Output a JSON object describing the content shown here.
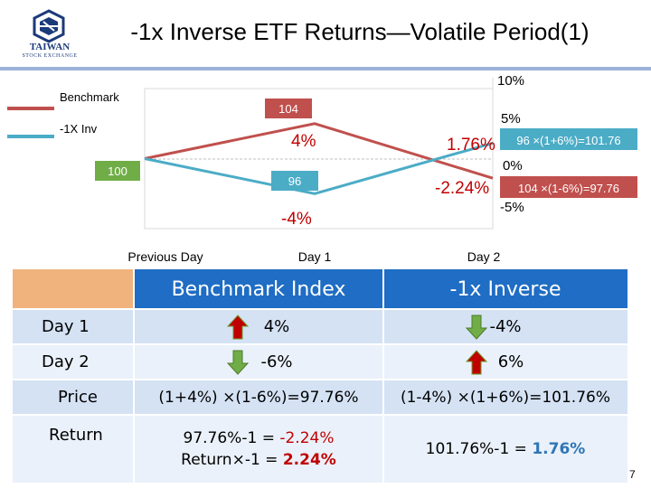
{
  "header": {
    "title": "-1x Inverse ETF Returns—Volatile Period(1)",
    "logo_text": "TAIWAN",
    "logo_sub": "STOCK EXCHANGE",
    "accent": "#1b3a7a"
  },
  "chart_data": {
    "type": "line",
    "title": "",
    "x": [
      "Previous Day",
      "Day 1",
      "Day 2"
    ],
    "y_axis_right": {
      "ticks": [
        "10%",
        "5%",
        "0%",
        "-5%"
      ],
      "ylim": [
        -7,
        11
      ]
    },
    "legend": [
      "Benchmark",
      "-1X Inv"
    ],
    "legend_position": "top-left",
    "series": [
      {
        "name": "Benchmark",
        "color": "#c0504d",
        "values": [
          100,
          104,
          97.76
        ]
      },
      {
        "name": "-1X Inv",
        "color": "#4bacc6",
        "values": [
          100,
          96,
          101.76
        ]
      }
    ],
    "index_labels": {
      "start": "100",
      "benchmark_day1": "104",
      "inverse_day1": "96"
    },
    "change_labels": {
      "benchmark_day1": "4%",
      "inverse_day1": "-4%"
    },
    "day2_returns": {
      "inverse": "1.76%",
      "benchmark": "-2.24%"
    },
    "day2_formulas": {
      "inverse": "96 ×(1+6%)=101.76",
      "benchmark": "104 ×(1-6%)=97.76"
    }
  },
  "table": {
    "col_headers": [
      "Benchmark Index",
      "-1x Inverse"
    ],
    "header_color": "#1f6dc4",
    "rows": [
      {
        "label": "Day 1",
        "benchmark": "4%",
        "inverse": "-4%"
      },
      {
        "label": "Day 2",
        "benchmark": "-6%",
        "inverse": "6%"
      },
      {
        "label": "Price",
        "benchmark": "(1+4%) ×(1-6%)=97.76%",
        "inverse": "(1-4%) ×(1+6%)=101.76%"
      }
    ],
    "return_row": {
      "label": "Return",
      "benchmark_line1_prefix": "97.76%-1 = ",
      "benchmark_line1_value": "-2.24%",
      "benchmark_line2_prefix": "Return×-1 = ",
      "benchmark_line2_value": "2.24%",
      "inverse_prefix": "101.76%-1 = ",
      "inverse_value": "1.76%"
    }
  },
  "page_number": "7"
}
